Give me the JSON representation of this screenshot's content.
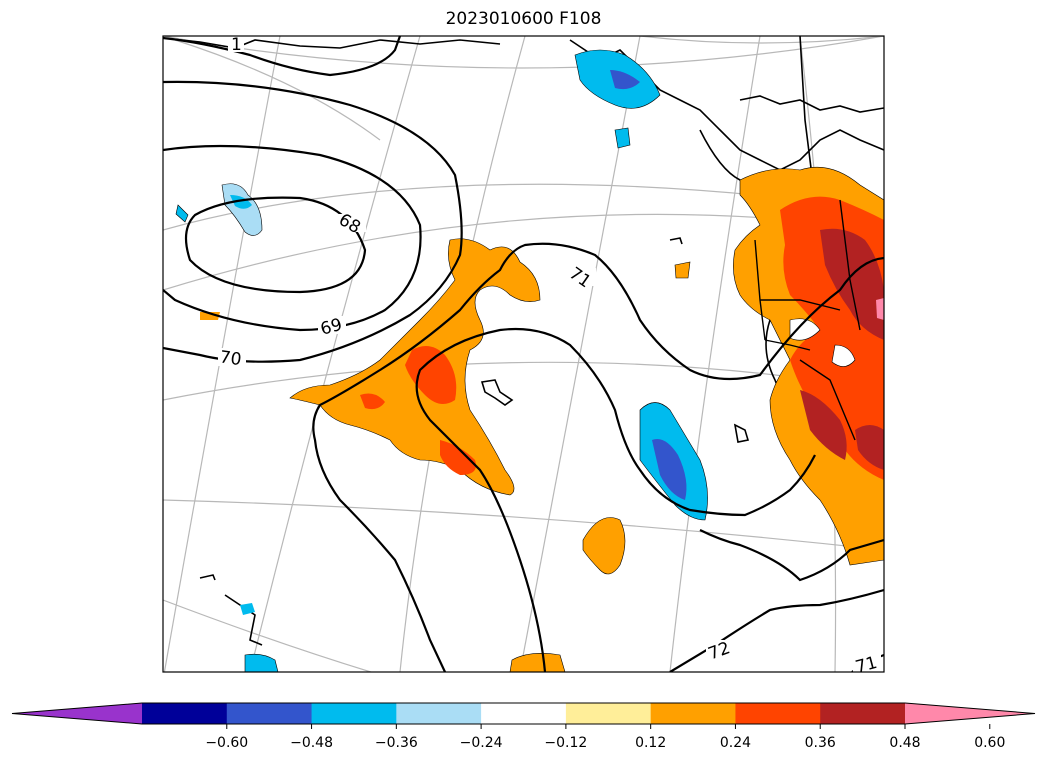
{
  "title": "2023010600 F108",
  "colorbar": {
    "ticks": [
      "−0.60",
      "−0.48",
      "−0.36",
      "−0.24",
      "−0.12",
      "0.12",
      "0.24",
      "0.36",
      "0.48",
      "0.60"
    ],
    "colors": [
      "#9933cc",
      "#000099",
      "#3355cc",
      "#00bbee",
      "#aaddf5",
      "#ffffff",
      "#ffee99",
      "#ffa000",
      "#ff4400",
      "#b22222",
      "#ff88aa"
    ],
    "extend": "both"
  },
  "contours": [
    {
      "label": "1"
    },
    {
      "label": "68"
    },
    {
      "label": "69"
    },
    {
      "label": "70"
    },
    {
      "label": "71"
    },
    {
      "label": "72"
    },
    {
      "label": "71"
    }
  ]
}
